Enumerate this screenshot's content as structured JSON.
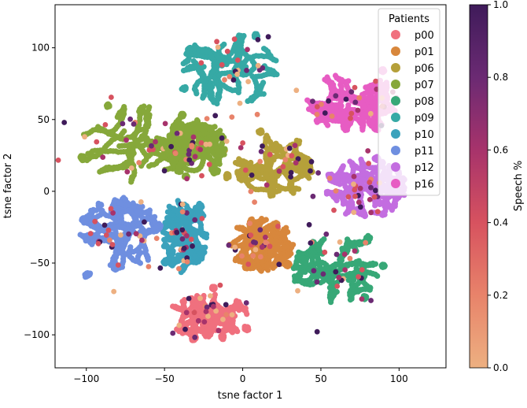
{
  "chart_data": {
    "type": "scatter",
    "title": "",
    "xlabel": "tsne factor 1",
    "ylabel": "tsne factor 2",
    "xlim": [
      -120,
      130
    ],
    "ylim": [
      -123,
      130
    ],
    "xticks": [
      -100,
      -50,
      0,
      50,
      100
    ],
    "xtick_labels": [
      "−100",
      "−50",
      "0",
      "50",
      "100"
    ],
    "yticks": [
      -100,
      -50,
      0,
      50,
      100
    ],
    "ytick_labels": [
      "−100",
      "−50",
      "0",
      "50",
      "100"
    ],
    "grid": false,
    "legend": {
      "title": "Patients",
      "placement": "top-right",
      "entries": [
        "p00",
        "p01",
        "p06",
        "p07",
        "p08",
        "p09",
        "p10",
        "p11",
        "p12",
        "p16"
      ]
    },
    "colorbar": {
      "label": "Speech %",
      "range": [
        0.0,
        1.0
      ],
      "ticks": [
        0.0,
        0.2,
        0.4,
        0.6,
        0.8,
        1.0
      ],
      "tick_labels": [
        "0.0",
        "0.2",
        "0.4",
        "0.6",
        "0.8",
        "1.0"
      ],
      "colormap_stops": [
        "#edb081",
        "#e8836a",
        "#d7525f",
        "#a7336b",
        "#6b2a73",
        "#3f1b5a"
      ]
    },
    "clusters": [
      {
        "name": "p00",
        "color": "#f0707e",
        "center": [
          -22,
          -87
        ],
        "spread": [
          22,
          12
        ]
      },
      {
        "name": "p01",
        "color": "#d8873c",
        "center": [
          12,
          -37
        ],
        "spread": [
          17,
          15
        ]
      },
      {
        "name": "p06",
        "color": "#b5a03a",
        "center": [
          20,
          18
        ],
        "spread": [
          21,
          18
        ]
      },
      {
        "name": "p07",
        "color": "#86a83a",
        "center": [
          -67,
          33
        ],
        "spread": [
          30,
          23
        ]
      },
      {
        "name": "p07",
        "color": "#86a83a",
        "center": [
          -30,
          30
        ],
        "spread": [
          16,
          16
        ]
      },
      {
        "name": "p08",
        "color": "#37a877",
        "center": [
          59,
          -55
        ],
        "spread": [
          23,
          19
        ]
      },
      {
        "name": "p09",
        "color": "#36a9a5",
        "center": [
          -8,
          85
        ],
        "spread": [
          26,
          21
        ]
      },
      {
        "name": "p10",
        "color": "#3ba2bc",
        "center": [
          -37,
          -30
        ],
        "spread": [
          11,
          23
        ]
      },
      {
        "name": "p11",
        "color": "#6f8fe0",
        "center": [
          -78,
          -30
        ],
        "spread": [
          22,
          20
        ]
      },
      {
        "name": "p12",
        "color": "#c36de0",
        "center": [
          79,
          2
        ],
        "spread": [
          21,
          17
        ]
      },
      {
        "name": "p16",
        "color": "#e75cc3",
        "center": [
          70,
          62
        ],
        "spread": [
          25,
          17
        ]
      }
    ]
  }
}
